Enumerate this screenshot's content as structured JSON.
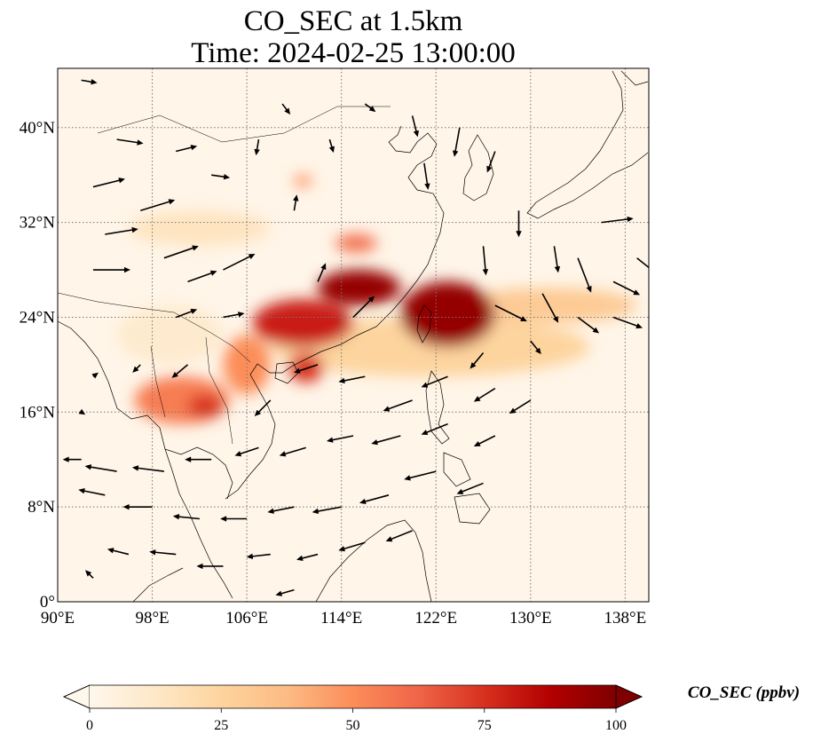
{
  "title": {
    "line1": "CO_SEC at 1.5km",
    "line2": "Time: 2024-02-25 13:00:00"
  },
  "map": {
    "extent": {
      "lon": [
        90,
        140
      ],
      "lat": [
        0,
        45
      ]
    },
    "lon_ticks": [
      {
        "value": 90,
        "label": "90°E"
      },
      {
        "value": 98,
        "label": "98°E"
      },
      {
        "value": 106,
        "label": "106°E"
      },
      {
        "value": 114,
        "label": "114°E"
      },
      {
        "value": 122,
        "label": "122°E"
      },
      {
        "value": 130,
        "label": "130°E"
      },
      {
        "value": 138,
        "label": "138°E"
      }
    ],
    "lat_ticks": [
      {
        "value": 0,
        "label": "0°"
      },
      {
        "value": 8,
        "label": "8°N"
      },
      {
        "value": 16,
        "label": "16°N"
      },
      {
        "value": 24,
        "label": "24°N"
      },
      {
        "value": 32,
        "label": "32°N"
      },
      {
        "value": 40,
        "label": "40°N"
      }
    ],
    "gridlines": true,
    "background_color": "#fff5e8",
    "coastline_color": "#000000"
  },
  "plumes": [
    {
      "lon": [
        96.5,
        104.5
      ],
      "lat": [
        15.0,
        19.0
      ],
      "level": 55
    },
    {
      "lon": [
        101.0,
        104.0
      ],
      "lat": [
        15.5,
        17.5
      ],
      "level": 75
    },
    {
      "lon": [
        104.0,
        108.0
      ],
      "lat": [
        17.5,
        22.5
      ],
      "level": 50
    },
    {
      "lon": [
        106.5,
        115.0
      ],
      "lat": [
        21.5,
        25.5
      ],
      "level": 80
    },
    {
      "lon": [
        112.0,
        119.0
      ],
      "lat": [
        25.0,
        28.0
      ],
      "level": 95
    },
    {
      "lon": [
        109.5,
        112.5
      ],
      "lat": [
        18.5,
        21.0
      ],
      "level": 75
    },
    {
      "lon": [
        119.0,
        127.0
      ],
      "lat": [
        21.5,
        27.0
      ],
      "level": 95
    },
    {
      "lon": [
        124.0,
        139.0
      ],
      "lat": [
        23.5,
        26.5
      ],
      "level": 30
    },
    {
      "lon": [
        113.5,
        117.0
      ],
      "lat": [
        29.5,
        31.0
      ],
      "level": 60
    },
    {
      "lon": [
        110.0,
        111.5
      ],
      "lat": [
        35.0,
        36.0
      ],
      "level": 50
    },
    {
      "lon": [
        96.0,
        108.0
      ],
      "lat": [
        30.0,
        33.0
      ],
      "level": 15
    },
    {
      "lon": [
        108.0,
        135.0
      ],
      "lat": [
        19.0,
        24.0
      ],
      "level": 25
    },
    {
      "lon": [
        95.0,
        104.0
      ],
      "lat": [
        20.0,
        25.0
      ],
      "level": 10
    }
  ],
  "wind_vectors": [
    {
      "lon": 92,
      "lat": 44,
      "u": 1.2,
      "v": -0.2
    },
    {
      "lon": 95,
      "lat": 39,
      "u": 2.0,
      "v": -0.3
    },
    {
      "lon": 93,
      "lat": 35,
      "u": 2.4,
      "v": 0.6
    },
    {
      "lon": 94,
      "lat": 31,
      "u": 2.5,
      "v": 0.4
    },
    {
      "lon": 93,
      "lat": 28,
      "u": 2.8,
      "v": 0.0
    },
    {
      "lon": 97,
      "lat": 33,
      "u": 2.6,
      "v": 0.8
    },
    {
      "lon": 99,
      "lat": 29,
      "u": 2.6,
      "v": 0.9
    },
    {
      "lon": 101,
      "lat": 27,
      "u": 2.2,
      "v": 0.8
    },
    {
      "lon": 104,
      "lat": 28,
      "u": 2.4,
      "v": 1.2
    },
    {
      "lon": 100,
      "lat": 24,
      "u": 1.6,
      "v": 0.6
    },
    {
      "lon": 104,
      "lat": 24,
      "u": 1.6,
      "v": 0.3
    },
    {
      "lon": 100,
      "lat": 38,
      "u": 1.6,
      "v": 0.4
    },
    {
      "lon": 103,
      "lat": 36,
      "u": 1.4,
      "v": -0.2
    },
    {
      "lon": 107,
      "lat": 39,
      "u": -0.2,
      "v": -1.2
    },
    {
      "lon": 109,
      "lat": 42,
      "u": 0.6,
      "v": -0.8
    },
    {
      "lon": 110,
      "lat": 33,
      "u": 0.2,
      "v": 1.2
    },
    {
      "lon": 112,
      "lat": 27,
      "u": 0.6,
      "v": 1.4
    },
    {
      "lon": 115,
      "lat": 24,
      "u": 1.6,
      "v": 1.6
    },
    {
      "lon": 113,
      "lat": 39,
      "u": 0.3,
      "v": -1.0
    },
    {
      "lon": 116,
      "lat": 42,
      "u": 0.8,
      "v": -0.6
    },
    {
      "lon": 120,
      "lat": 41,
      "u": 0.4,
      "v": -1.6
    },
    {
      "lon": 121,
      "lat": 37,
      "u": 0.3,
      "v": -2.0
    },
    {
      "lon": 124,
      "lat": 40,
      "u": -0.4,
      "v": -2.2
    },
    {
      "lon": 127,
      "lat": 38,
      "u": -0.6,
      "v": -1.6
    },
    {
      "lon": 129,
      "lat": 33,
      "u": 0.0,
      "v": -2.0
    },
    {
      "lon": 126,
      "lat": 30,
      "u": 0.2,
      "v": -2.2
    },
    {
      "lon": 132,
      "lat": 30,
      "u": 0.3,
      "v": -2.0
    },
    {
      "lon": 136,
      "lat": 32,
      "u": 2.4,
      "v": 0.3
    },
    {
      "lon": 134,
      "lat": 29,
      "u": 1.0,
      "v": -2.6
    },
    {
      "lon": 137,
      "lat": 27,
      "u": 2.0,
      "v": -1.0
    },
    {
      "lon": 139,
      "lat": 29,
      "u": 2.0,
      "v": -1.6
    },
    {
      "lon": 131,
      "lat": 26,
      "u": 1.2,
      "v": -2.2
    },
    {
      "lon": 127,
      "lat": 25,
      "u": 2.4,
      "v": -1.2
    },
    {
      "lon": 134,
      "lat": 24,
      "u": 1.6,
      "v": -1.2
    },
    {
      "lon": 137,
      "lat": 24,
      "u": 2.2,
      "v": -0.8
    },
    {
      "lon": 130,
      "lat": 22,
      "u": 0.8,
      "v": -1.0
    },
    {
      "lon": 126,
      "lat": 21,
      "u": -1.0,
      "v": -1.2
    },
    {
      "lon": 123,
      "lat": 19,
      "u": -2.0,
      "v": -0.8
    },
    {
      "lon": 127,
      "lat": 18,
      "u": -1.6,
      "v": -1.0
    },
    {
      "lon": 120,
      "lat": 17,
      "u": -2.2,
      "v": -0.8
    },
    {
      "lon": 116,
      "lat": 19,
      "u": -2.0,
      "v": -0.4
    },
    {
      "lon": 112,
      "lat": 20,
      "u": -1.8,
      "v": -0.6
    },
    {
      "lon": 108,
      "lat": 17,
      "u": -1.2,
      "v": -1.2
    },
    {
      "lon": 130,
      "lat": 17,
      "u": -1.6,
      "v": -1.0
    },
    {
      "lon": 123,
      "lat": 15,
      "u": -2.0,
      "v": -0.8
    },
    {
      "lon": 127,
      "lat": 14,
      "u": -1.6,
      "v": -0.8
    },
    {
      "lon": 119,
      "lat": 14,
      "u": -2.2,
      "v": -0.6
    },
    {
      "lon": 115,
      "lat": 14,
      "u": -2.0,
      "v": -0.4
    },
    {
      "lon": 111,
      "lat": 13,
      "u": -2.0,
      "v": -0.6
    },
    {
      "lon": 107,
      "lat": 13,
      "u": -1.8,
      "v": -0.6
    },
    {
      "lon": 103,
      "lat": 12,
      "u": -2.0,
      "v": 0.0
    },
    {
      "lon": 99,
      "lat": 11,
      "u": -2.4,
      "v": 0.3
    },
    {
      "lon": 95,
      "lat": 11,
      "u": -2.4,
      "v": 0.4
    },
    {
      "lon": 92,
      "lat": 12,
      "u": -1.4,
      "v": 0.0
    },
    {
      "lon": 94,
      "lat": 9,
      "u": -2.0,
      "v": 0.4
    },
    {
      "lon": 98,
      "lat": 8,
      "u": -2.2,
      "v": 0.0
    },
    {
      "lon": 102,
      "lat": 7,
      "u": -2.0,
      "v": 0.2
    },
    {
      "lon": 106,
      "lat": 7,
      "u": -2.0,
      "v": 0.0
    },
    {
      "lon": 110,
      "lat": 8,
      "u": -2.0,
      "v": -0.4
    },
    {
      "lon": 114,
      "lat": 8,
      "u": -2.2,
      "v": -0.4
    },
    {
      "lon": 118,
      "lat": 9,
      "u": -2.2,
      "v": -0.6
    },
    {
      "lon": 122,
      "lat": 11,
      "u": -2.4,
      "v": -0.6
    },
    {
      "lon": 126,
      "lat": 10,
      "u": -2.0,
      "v": -0.8
    },
    {
      "lon": 96,
      "lat": 4,
      "u": -1.6,
      "v": 0.4
    },
    {
      "lon": 100,
      "lat": 4,
      "u": -2.0,
      "v": 0.2
    },
    {
      "lon": 104,
      "lat": 3,
      "u": -2.0,
      "v": 0.0
    },
    {
      "lon": 108,
      "lat": 4,
      "u": -1.8,
      "v": -0.2
    },
    {
      "lon": 112,
      "lat": 4,
      "u": -1.6,
      "v": -0.4
    },
    {
      "lon": 116,
      "lat": 5,
      "u": -2.0,
      "v": -0.6
    },
    {
      "lon": 120,
      "lat": 6,
      "u": -2.0,
      "v": -0.8
    },
    {
      "lon": 93,
      "lat": 2,
      "u": -0.6,
      "v": 0.6
    },
    {
      "lon": 110,
      "lat": 1,
      "u": -1.4,
      "v": -0.4
    },
    {
      "lon": 101,
      "lat": 20,
      "u": -1.2,
      "v": -1.0
    },
    {
      "lon": 97,
      "lat": 20,
      "u": -0.6,
      "v": -0.6
    },
    {
      "lon": 93,
      "lat": 19,
      "u": 0.4,
      "v": 0.3
    },
    {
      "lon": 92,
      "lat": 16,
      "u": 0.3,
      "v": -0.2
    }
  ],
  "colorbar": {
    "ticks": [
      {
        "value": 0,
        "label": "0"
      },
      {
        "value": 25,
        "label": "25"
      },
      {
        "value": 50,
        "label": "50"
      },
      {
        "value": 75,
        "label": "75"
      },
      {
        "value": 100,
        "label": "100"
      }
    ],
    "range": [
      0,
      100
    ],
    "extend": "both",
    "label": "CO_SEC (ppbv)",
    "colors": [
      "#fff7ec",
      "#fee8c8",
      "#fdd49e",
      "#fdbb84",
      "#fc8d59",
      "#ef6548",
      "#d7301f",
      "#b30000",
      "#7f0000"
    ]
  }
}
